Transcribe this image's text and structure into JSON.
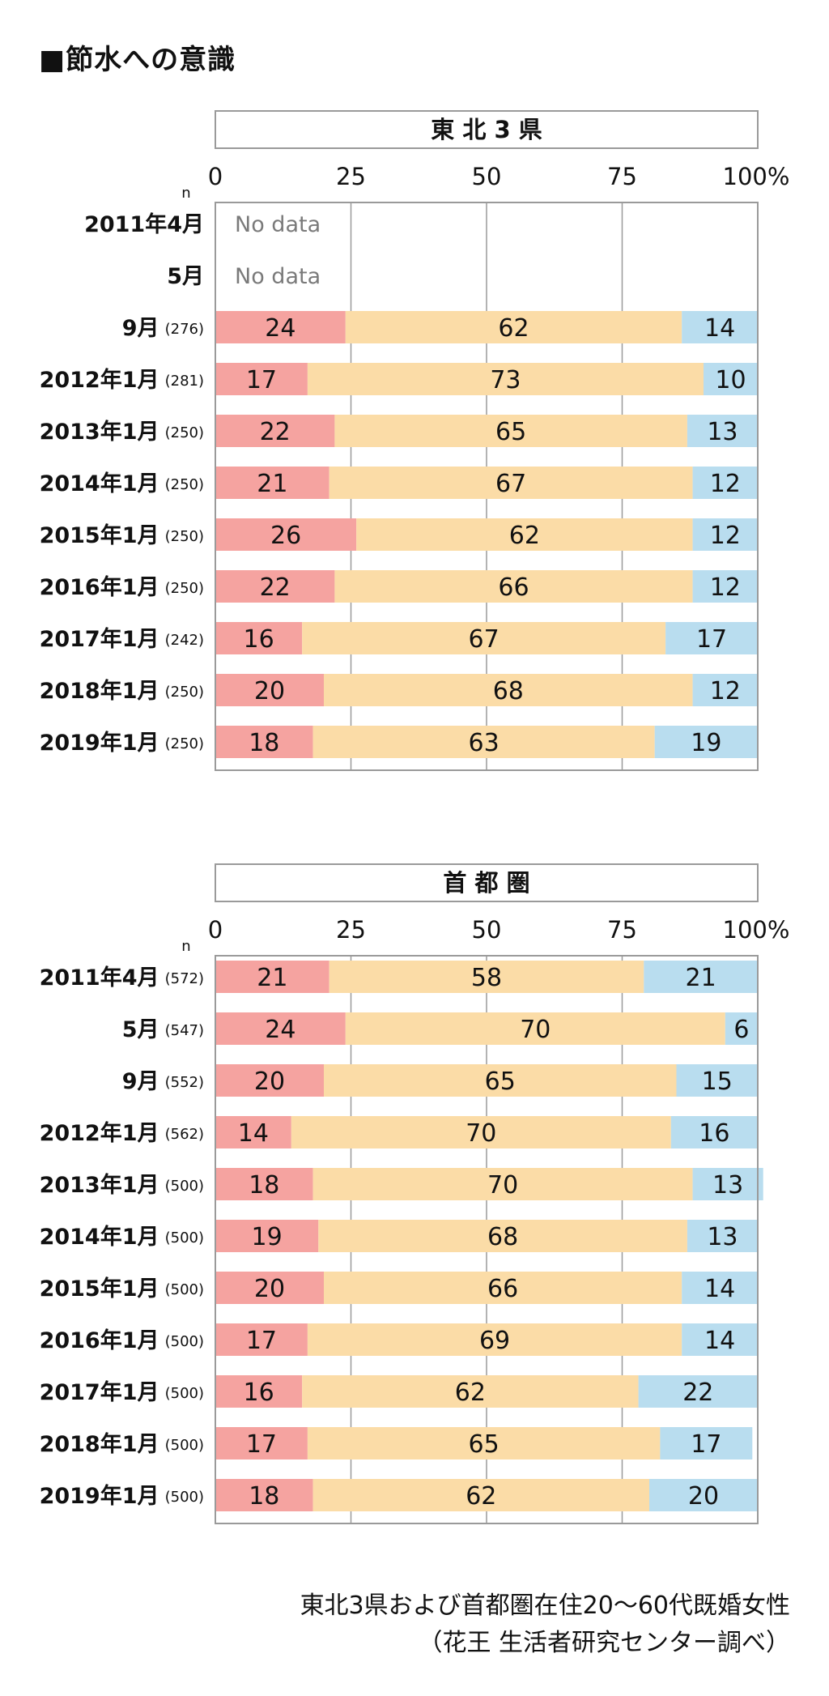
{
  "page_title": "■節水への意識",
  "colors": {
    "seg1": "#f5a3a0",
    "seg2": "#fbdca7",
    "seg3": "#b9ddef",
    "grid": "#9a9a9a",
    "frame": "#9a9a9a",
    "nodata": "#7a7a7a"
  },
  "footer": {
    "line1": "東北3県および首都圏在住20〜60代既婚女性",
    "line2": "（花王 生活者研究センター調べ）"
  },
  "chart_data": [
    {
      "type": "bar",
      "stacked": true,
      "orientation": "horizontal",
      "title": "東 北 3 県",
      "n_label": "n",
      "xlim": [
        0,
        100
      ],
      "x_ticks": [
        "0",
        "25",
        "50",
        "75",
        "100%"
      ],
      "grid": true,
      "no_data_label": "No data",
      "rows": [
        {
          "label": "2011年4月",
          "n": "",
          "values": null
        },
        {
          "label": "5月",
          "n": "",
          "values": null
        },
        {
          "label": "9月",
          "n": "(276)",
          "values": [
            24,
            62,
            14
          ]
        },
        {
          "label": "2012年1月",
          "n": "(281)",
          "values": [
            17,
            73,
            10
          ]
        },
        {
          "label": "2013年1月",
          "n": "(250)",
          "values": [
            22,
            65,
            13
          ]
        },
        {
          "label": "2014年1月",
          "n": "(250)",
          "values": [
            21,
            67,
            12
          ]
        },
        {
          "label": "2015年1月",
          "n": "(250)",
          "values": [
            26,
            62,
            12
          ]
        },
        {
          "label": "2016年1月",
          "n": "(250)",
          "values": [
            22,
            66,
            12
          ]
        },
        {
          "label": "2017年1月",
          "n": "(242)",
          "values": [
            16,
            67,
            17
          ]
        },
        {
          "label": "2018年1月",
          "n": "(250)",
          "values": [
            20,
            68,
            12
          ]
        },
        {
          "label": "2019年1月",
          "n": "(250)",
          "values": [
            18,
            63,
            19
          ]
        }
      ]
    },
    {
      "type": "bar",
      "stacked": true,
      "orientation": "horizontal",
      "title": "首 都 圏",
      "n_label": "n",
      "xlim": [
        0,
        100
      ],
      "x_ticks": [
        "0",
        "25",
        "50",
        "75",
        "100%"
      ],
      "grid": true,
      "rows": [
        {
          "label": "2011年4月",
          "n": "(572)",
          "values": [
            21,
            58,
            21
          ]
        },
        {
          "label": "5月",
          "n": "(547)",
          "values": [
            24,
            70,
            6
          ]
        },
        {
          "label": "9月",
          "n": "(552)",
          "values": [
            20,
            65,
            15
          ]
        },
        {
          "label": "2012年1月",
          "n": "(562)",
          "values": [
            14,
            70,
            16
          ]
        },
        {
          "label": "2013年1月",
          "n": "(500)",
          "values": [
            18,
            70,
            13
          ]
        },
        {
          "label": "2014年1月",
          "n": "(500)",
          "values": [
            19,
            68,
            13
          ]
        },
        {
          "label": "2015年1月",
          "n": "(500)",
          "values": [
            20,
            66,
            14
          ]
        },
        {
          "label": "2016年1月",
          "n": "(500)",
          "values": [
            17,
            69,
            14
          ]
        },
        {
          "label": "2017年1月",
          "n": "(500)",
          "values": [
            16,
            62,
            22
          ]
        },
        {
          "label": "2018年1月",
          "n": "(500)",
          "values": [
            17,
            65,
            17
          ]
        },
        {
          "label": "2019年1月",
          "n": "(500)",
          "values": [
            18,
            62,
            20
          ]
        }
      ]
    }
  ]
}
